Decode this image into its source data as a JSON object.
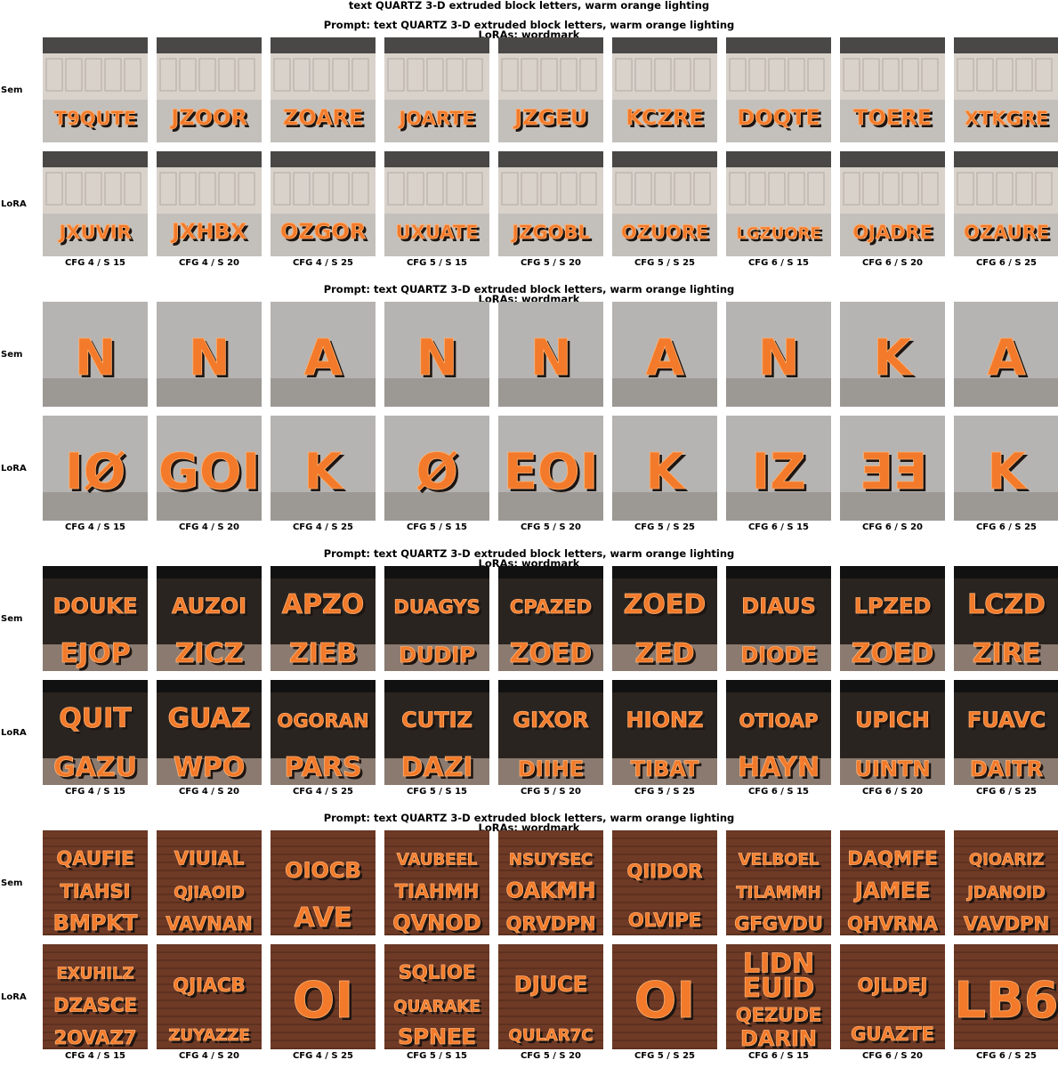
{
  "title": "text QUARTZ 3-D extruded block letters, warm orange lighting",
  "row_labels": [
    "Sem",
    "LoRA"
  ],
  "columns": [
    "CFG 4 / S 15",
    "CFG 4 / S 20",
    "CFG 4 / S 25",
    "CFG 5 / S 15",
    "CFG 5 / S 20",
    "CFG 5 / S 25",
    "CFG 6 / S 15",
    "CFG 6 / S 20",
    "CFG 6 / S 25"
  ],
  "panels": [
    {
      "prompt": "Prompt: text QUARTZ 3-D extruded block letters, warm orange lighting",
      "loras": "LoRAs: wordmark",
      "scene": "office",
      "images": {
        "sem": [
          "T9QUTE",
          "JZOOR",
          "ZOARE",
          "JOARTE",
          "JZGEU",
          "KCZRE",
          "DOQTE",
          "TOERE",
          "XTKGRE"
        ],
        "lora": [
          "JXUVIR",
          "JXHBX",
          "OZGOR",
          "UXUATE",
          "JZGOBL",
          "OZUORE",
          "LGZUORE",
          "OJADRE",
          "OZAURE"
        ]
      }
    },
    {
      "prompt": "Prompt: text QUARTZ 3-D extruded block letters, warm orange lighting",
      "loras": "LoRAs: wordmark",
      "scene": "studio",
      "images": {
        "sem": [
          "N",
          "N",
          "A",
          "N",
          "N",
          "A",
          "N",
          "K",
          "A"
        ],
        "lora": [
          "IØ",
          "GOI",
          "K",
          "Ø",
          "EOI",
          "K",
          "IZ",
          "ƎƎ",
          "K"
        ]
      }
    },
    {
      "prompt": "Prompt: text QUARTZ 3-D extruded block letters, warm orange lighting",
      "loras": "LoRAs: wordmark",
      "scene": "hall",
      "images": {
        "sem": [
          "DOUKE EJOP",
          "AUZOI ZICZ",
          "APZO ZIEB",
          "DUAGYS DUDIP",
          "CPAZED ZOED",
          "ZOED ZED",
          "DIAUS DIODE",
          "LPZED ZOED",
          "LCZD ZIRE"
        ],
        "lora": [
          "QUIT GAZU",
          "GUAZ WPO",
          "OGORAN PARS",
          "CUTIZ DAZI",
          "GIXOR DIIHE",
          "HIONZ TIBAT",
          "OTIOAP HAYN",
          "UPICH UINTN",
          "FUAVC DAITR"
        ]
      }
    },
    {
      "prompt": "Prompt: text QUARTZ 3-D extruded block letters, warm orange lighting",
      "loras": "LoRAs: wordmark",
      "scene": "brick",
      "images": {
        "sem": [
          "QAUFIE TIAHSI BMPKT",
          "VIUIAL QJIAOID VAVNAN",
          "OIOCB AVE",
          "VAUBEEL TIAHMH QVNOD",
          "NSUYSEC OAKMH QRVDPN",
          "QIIDOR OLVIPE",
          "VELBOEL TILAMMH GFGVDU",
          "DAQMFE JAMEE QHVRNA",
          "QIOARIZ JDANOID VAVDPN"
        ],
        "lora": [
          "EXUHILZ DZASCE 2OVAZ7",
          "QJIACB ZUYAZZE",
          "OI",
          "SQLIOE QUARAKE SPNEE",
          "DJUCE QULAR7C",
          "OI",
          "LIDN EUID QEZUDE DARIN",
          "OJLDEJ GUAZTE",
          "LB6"
        ]
      }
    }
  ],
  "colors": {
    "orange": "#f27a2a",
    "bright": "#ffb070",
    "dark": "#1e1511"
  }
}
